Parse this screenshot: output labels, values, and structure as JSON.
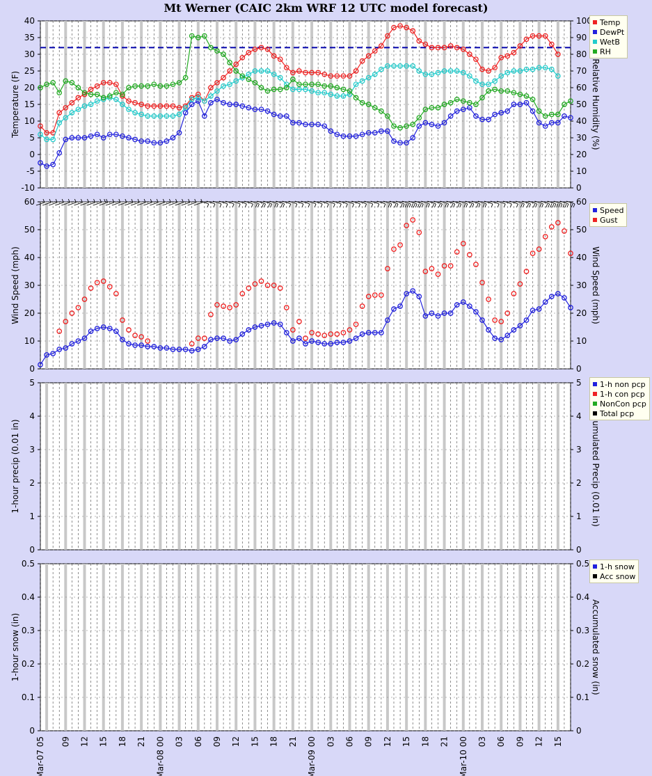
{
  "title": "Mt Werner (CAIC 2km WRF 12 UTC model forecast)",
  "x_hours": {
    "start": 0,
    "end": 68
  },
  "x_ticks": [
    {
      "h": 0,
      "label": "Mar-07 05"
    },
    {
      "h": 4,
      "label": "09"
    },
    {
      "h": 7,
      "label": "12"
    },
    {
      "h": 10,
      "label": "15"
    },
    {
      "h": 13,
      "label": "18"
    },
    {
      "h": 16,
      "label": "21"
    },
    {
      "h": 19,
      "label": "Mar-08 00"
    },
    {
      "h": 22,
      "label": "03"
    },
    {
      "h": 25,
      "label": "06"
    },
    {
      "h": 28,
      "label": "09"
    },
    {
      "h": 31,
      "label": "12"
    },
    {
      "h": 34,
      "label": "15"
    },
    {
      "h": 37,
      "label": "18"
    },
    {
      "h": 40,
      "label": "21"
    },
    {
      "h": 43,
      "label": "Mar-09 00"
    },
    {
      "h": 46,
      "label": "03"
    },
    {
      "h": 49,
      "label": "06"
    },
    {
      "h": 52,
      "label": "09"
    },
    {
      "h": 55,
      "label": "12"
    },
    {
      "h": 58,
      "label": "15"
    },
    {
      "h": 61,
      "label": "18"
    },
    {
      "h": 64,
      "label": "21"
    },
    {
      "h": 67,
      "label": "Mar-10 00"
    },
    {
      "h": 70,
      "label": "03"
    },
    {
      "h": 73,
      "label": "06"
    },
    {
      "h": 76,
      "label": "09"
    },
    {
      "h": 79,
      "label": "12"
    },
    {
      "h": 82,
      "label": "15"
    }
  ],
  "chart_data": [
    {
      "type": "line",
      "ylabel": "Temperature (F)",
      "y2label": "Relative Humidity (%)",
      "ylim": [
        -10,
        40
      ],
      "y2lim": [
        0,
        100
      ],
      "yticks": [
        -10,
        -5,
        0,
        5,
        10,
        15,
        20,
        25,
        30,
        35,
        40
      ],
      "y2ticks": [
        0,
        10,
        20,
        30,
        40,
        50,
        60,
        70,
        80,
        90,
        100
      ],
      "reference_line": {
        "axis": "y",
        "value": 32,
        "color": "#0000aa"
      },
      "legend": [
        {
          "name": "Temp",
          "color": "#ee2222"
        },
        {
          "name": "DewPt",
          "color": "#2222dd"
        },
        {
          "name": "WetB",
          "color": "#22cccc"
        },
        {
          "name": "RH",
          "color": "#22aa22"
        }
      ],
      "series": [
        {
          "name": "Temp",
          "color": "#ee2222",
          "axis": "y",
          "values": [
            8.5,
            6.5,
            6.5,
            12.5,
            14,
            15.5,
            17,
            18,
            19.5,
            20.5,
            21.5,
            21.5,
            21,
            17.5,
            16,
            15.5,
            15,
            14.5,
            14.5,
            14.5,
            14.5,
            14.5,
            14,
            14.5,
            17,
            18,
            16,
            20,
            21.5,
            23,
            25,
            27,
            29,
            30.5,
            31.5,
            32,
            31.5,
            29.5,
            28.5,
            26,
            24.5,
            25,
            24.5,
            24.5,
            24.5,
            24,
            23.5,
            23.5,
            23.5,
            23.5,
            25,
            28,
            29.5,
            31,
            32.5,
            35.5,
            38,
            38.5,
            38,
            37,
            34,
            33,
            32,
            32,
            32,
            32.5,
            32,
            31.5,
            30,
            28.5,
            25.5,
            25,
            26,
            29,
            29.5,
            30.5,
            32.5,
            34.5,
            35.5,
            35.5,
            35.5,
            33,
            30
          ]
        },
        {
          "name": "DewPt",
          "color": "#2222dd",
          "axis": "y",
          "values": [
            -2.5,
            -3.5,
            -3,
            0.5,
            4.5,
            5,
            5,
            5,
            5.5,
            6,
            5,
            6,
            6,
            5.5,
            5,
            4.5,
            4,
            4,
            3.5,
            3.5,
            4,
            5,
            6.5,
            12.5,
            15,
            16,
            11.5,
            15.5,
            16.5,
            15.5,
            15,
            15,
            14.5,
            14,
            13.5,
            13.5,
            13,
            12,
            11.5,
            11.5,
            9.5,
            9.5,
            9,
            9,
            9,
            8.5,
            7,
            6,
            5.5,
            5.5,
            5.5,
            6,
            6.5,
            6.5,
            7,
            7,
            4,
            3.5,
            3.5,
            5,
            8.5,
            9.5,
            9,
            8.5,
            9.5,
            11.5,
            13,
            13.5,
            14,
            11.5,
            10.5,
            10.5,
            12,
            12.5,
            13,
            15,
            15,
            15.5,
            13,
            9.5,
            8.5,
            9.5,
            9.5,
            11.5,
            11
          ]
        },
        {
          "name": "WetB",
          "color": "#22cccc",
          "axis": "y",
          "values": [
            6,
            4.5,
            4.5,
            9.5,
            11,
            12.5,
            13.5,
            14.5,
            15,
            16,
            16.5,
            17,
            16.5,
            15,
            13.5,
            12.5,
            12,
            11.5,
            11.5,
            11.5,
            11.5,
            11.5,
            12,
            14,
            16.5,
            17,
            16,
            17.5,
            19,
            20.5,
            21,
            22,
            23,
            24,
            25,
            25,
            25,
            24,
            23,
            21,
            19.5,
            19.5,
            19.5,
            19,
            18.5,
            18.5,
            18,
            17.5,
            17.5,
            18,
            21,
            22,
            23,
            24,
            25.5,
            26.5,
            26.5,
            26.5,
            26.5,
            26.5,
            25,
            24,
            24,
            24.5,
            25,
            25,
            25,
            24.5,
            23.5,
            22,
            21,
            21,
            22,
            23.5,
            24.5,
            25,
            25,
            25.5,
            25.5,
            26,
            26,
            25.5,
            23.5
          ]
        },
        {
          "name": "RH",
          "color": "#22aa22",
          "axis": "y2",
          "values": [
            60,
            62,
            63,
            57,
            64,
            63,
            60,
            57,
            56,
            56,
            54,
            55,
            57,
            56,
            60,
            61,
            61,
            61,
            62,
            61,
            61,
            62,
            63,
            66,
            91,
            90,
            91,
            84,
            82,
            80,
            75,
            70,
            67,
            65,
            63,
            60,
            58,
            59,
            59,
            60,
            65,
            62,
            62,
            62,
            62,
            61,
            61,
            60,
            59,
            58,
            54,
            51,
            50,
            48,
            46,
            43,
            37,
            36,
            37,
            38,
            42,
            47,
            48,
            48,
            50,
            51,
            53,
            52,
            51,
            50,
            54,
            58,
            59,
            58,
            58,
            57,
            56,
            55,
            53,
            46,
            43,
            44,
            44,
            50,
            52
          ]
        },
        {
          "name": "RH-markers",
          "hidden": true,
          "values": []
        }
      ]
    },
    {
      "type": "scatter",
      "ylabel": "Wind Speed (mph)",
      "y2label": "Wind Speed (mph)",
      "ylim": [
        0,
        60
      ],
      "yticks": [
        0,
        10,
        20,
        30,
        40,
        50,
        60
      ],
      "legend": [
        {
          "name": "Speed",
          "color": "#2222dd"
        },
        {
          "name": "Gust",
          "color": "#ee2222"
        }
      ],
      "series": [
        {
          "name": "Speed",
          "color": "#2222dd",
          "line": true,
          "values": [
            1.5,
            5,
            5.5,
            7,
            7.5,
            9,
            10,
            11,
            13.5,
            14.5,
            15,
            14.5,
            13.5,
            10.5,
            9,
            8.5,
            8.5,
            8,
            8,
            7.5,
            7.5,
            7,
            7,
            7,
            6.5,
            7,
            8,
            10.5,
            11,
            11,
            10,
            10.5,
            12.5,
            14,
            15,
            15.5,
            16,
            16.5,
            16,
            13,
            10,
            11,
            9,
            10,
            9.5,
            9,
            9,
            9.5,
            9.5,
            10,
            11,
            12.5,
            13,
            13,
            13,
            17.5,
            21.5,
            22.5,
            27,
            28,
            26,
            19,
            20,
            19,
            20,
            20,
            23,
            24,
            22.5,
            20.5,
            17.5,
            14,
            11,
            10.5,
            12,
            14,
            15.5,
            17.5,
            21,
            21.5,
            24,
            26,
            27,
            25.5,
            22
          ]
        },
        {
          "name": "Gust",
          "color": "#ee2222",
          "line": false,
          "values": [
            null,
            null,
            null,
            13.5,
            17,
            20,
            22,
            25,
            29,
            31,
            31.5,
            29.5,
            27,
            17.5,
            14,
            12,
            11.5,
            10,
            null,
            null,
            null,
            null,
            null,
            null,
            9,
            11,
            11,
            19.5,
            23,
            22.5,
            22,
            23,
            27,
            29,
            30.5,
            31.5,
            30,
            30,
            29,
            22,
            14,
            17,
            11,
            13,
            12.5,
            12,
            12.5,
            12.5,
            13,
            14,
            16,
            22.5,
            26,
            26.5,
            26.5,
            36,
            43,
            44.5,
            51.5,
            53.5,
            49,
            35,
            36,
            34,
            37,
            37,
            42,
            45,
            41,
            37.5,
            31,
            25,
            17.5,
            17,
            20,
            27,
            30.5,
            35,
            41.5,
            43,
            47.5,
            51,
            52.5,
            49.5,
            41.5
          ]
        }
      ],
      "wind_barbs": true
    },
    {
      "type": "bar",
      "ylabel": "1-hour precip (0.01 in)",
      "y2label": "Accumulated Precip (0.01 in)",
      "ylim": [
        0,
        5
      ],
      "yticks": [
        0,
        1,
        2,
        3,
        4,
        5
      ],
      "legend": [
        {
          "name": "1-h non pcp",
          "color": "#2222dd"
        },
        {
          "name": "1-h con pcp",
          "color": "#ee2222"
        },
        {
          "name": "NonCon pcp",
          "color": "#22aa22"
        },
        {
          "name": "Total pcp",
          "color": "#000000"
        }
      ],
      "series": []
    },
    {
      "type": "bar",
      "ylabel": "1-hour snow (in)",
      "y2label": "Accumulated snow (in)",
      "ylim": [
        0,
        0.5
      ],
      "yticks": [
        0,
        0.1,
        0.2,
        0.3,
        0.4,
        0.5
      ],
      "legend": [
        {
          "name": "1-h snow",
          "color": "#2222dd"
        },
        {
          "name": "Acc snow",
          "color": "#000000"
        }
      ],
      "series": []
    }
  ]
}
